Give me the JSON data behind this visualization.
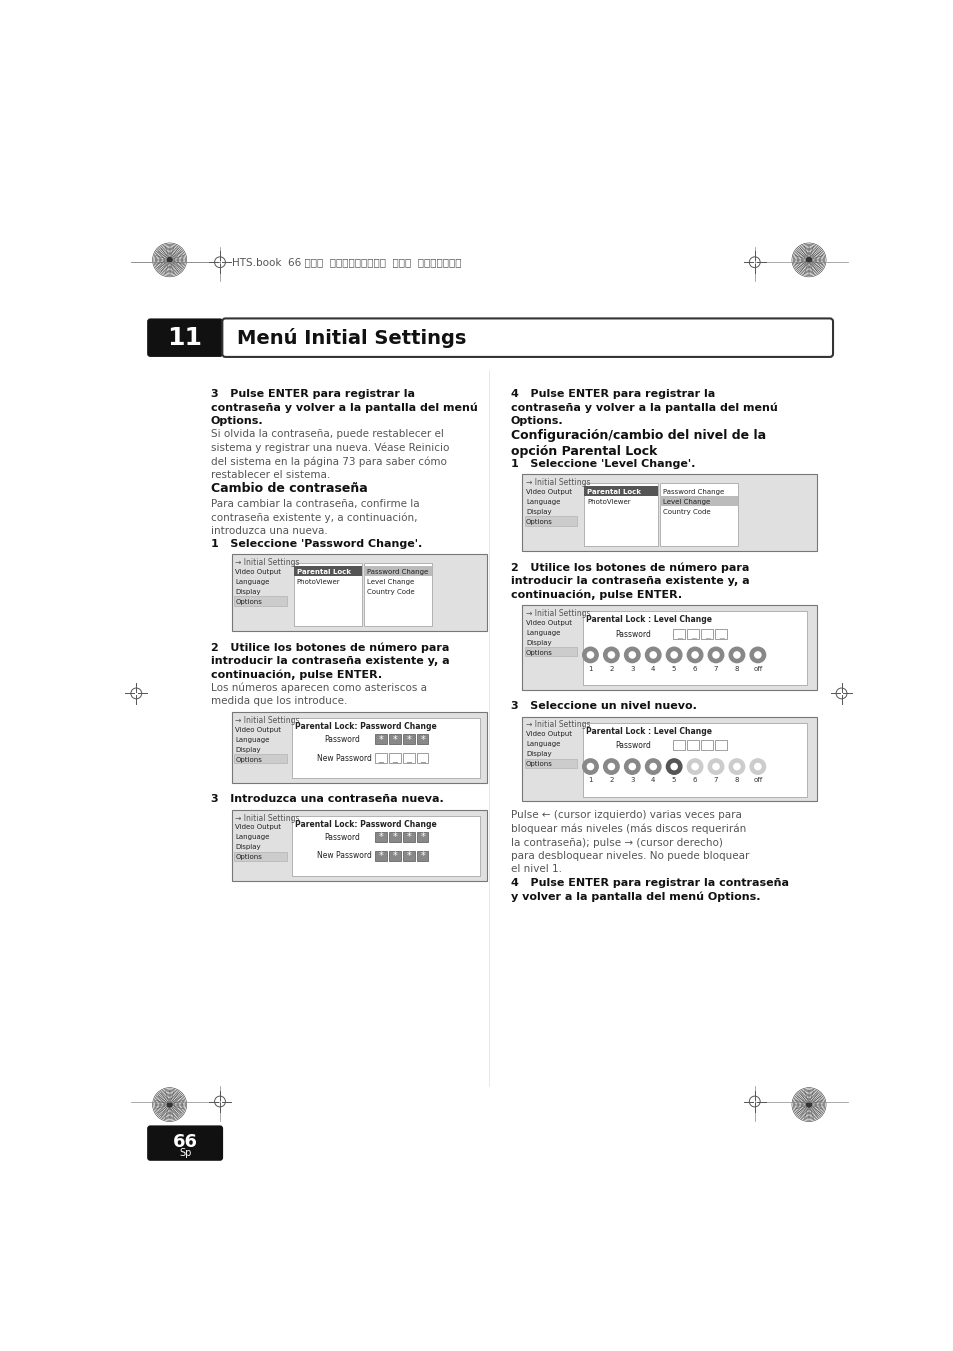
{
  "page_bg": "#ffffff",
  "header_text": "HTS.book  66 ページ  ２００３年３月６日  木曜日  午後５時３７分",
  "chapter_num": "11",
  "chapter_title": "Menú Initial Settings",
  "page_num": "66",
  "page_lang": "Sp",
  "left_items": [
    "Video Output",
    "Language",
    "Display",
    "Options"
  ],
  "mid_items": [
    "Parental Lock",
    "PhotoViewer"
  ],
  "right_items_pw": [
    "Password Change",
    "Level Change",
    "Country Code"
  ]
}
